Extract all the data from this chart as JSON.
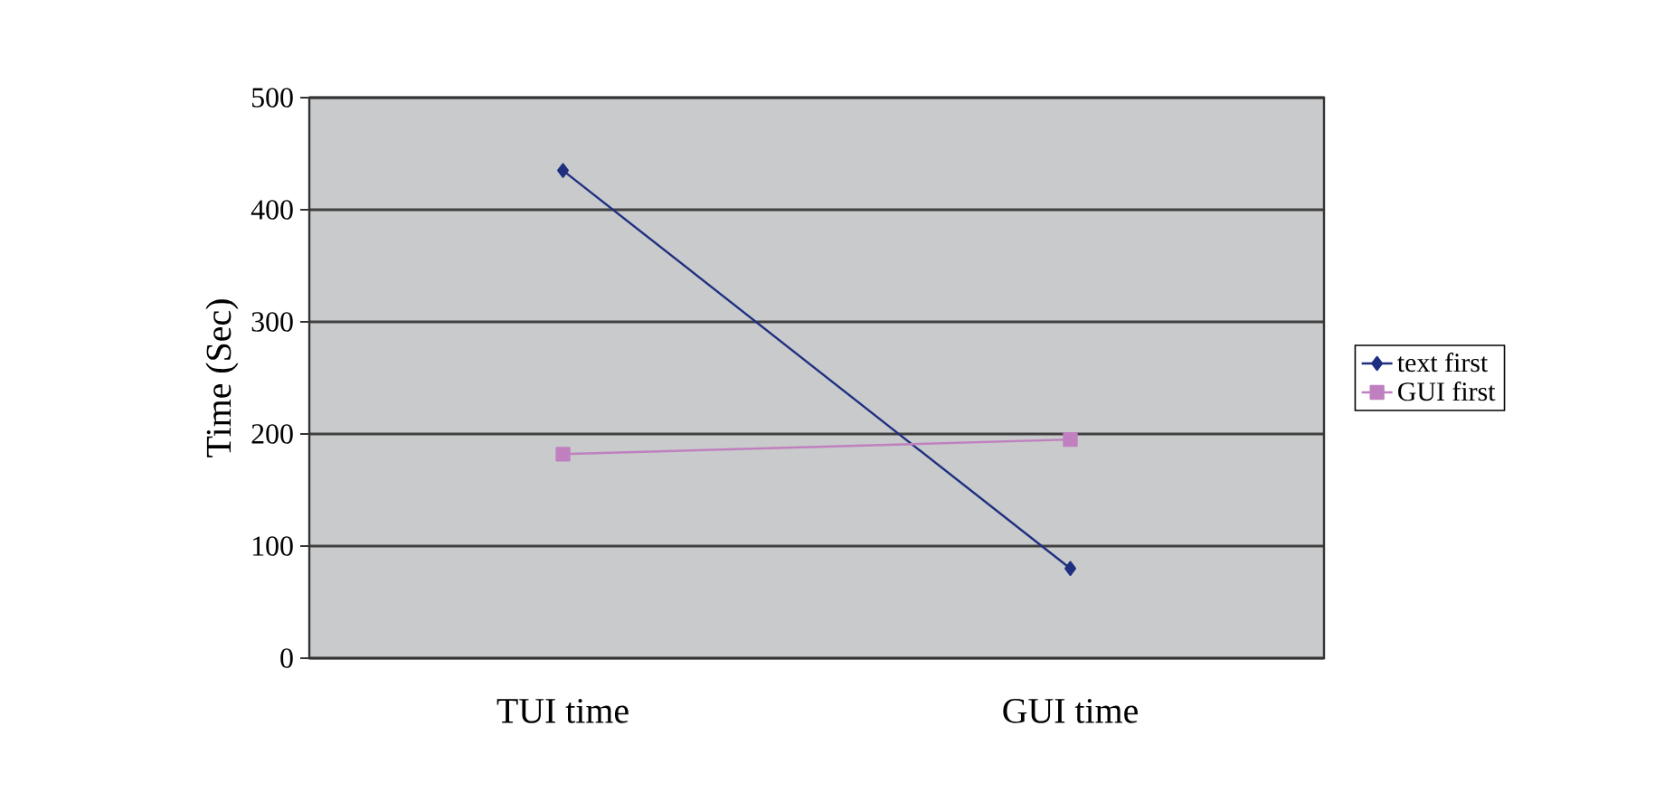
{
  "chart_data": {
    "type": "line",
    "ylabel": "Time (Sec)",
    "categories": [
      "TUI time",
      "GUI time"
    ],
    "series": [
      {
        "name": "text first",
        "color": "#1f2f80",
        "marker": "diamond",
        "values": [
          435,
          80
        ]
      },
      {
        "name": "GUI first",
        "color": "#c080c0",
        "marker": "square",
        "values": [
          182,
          195
        ]
      }
    ],
    "ylim": [
      0,
      500
    ],
    "yticks": [
      0,
      100,
      200,
      300,
      400,
      500
    ],
    "grid": "y",
    "legend": "right"
  }
}
